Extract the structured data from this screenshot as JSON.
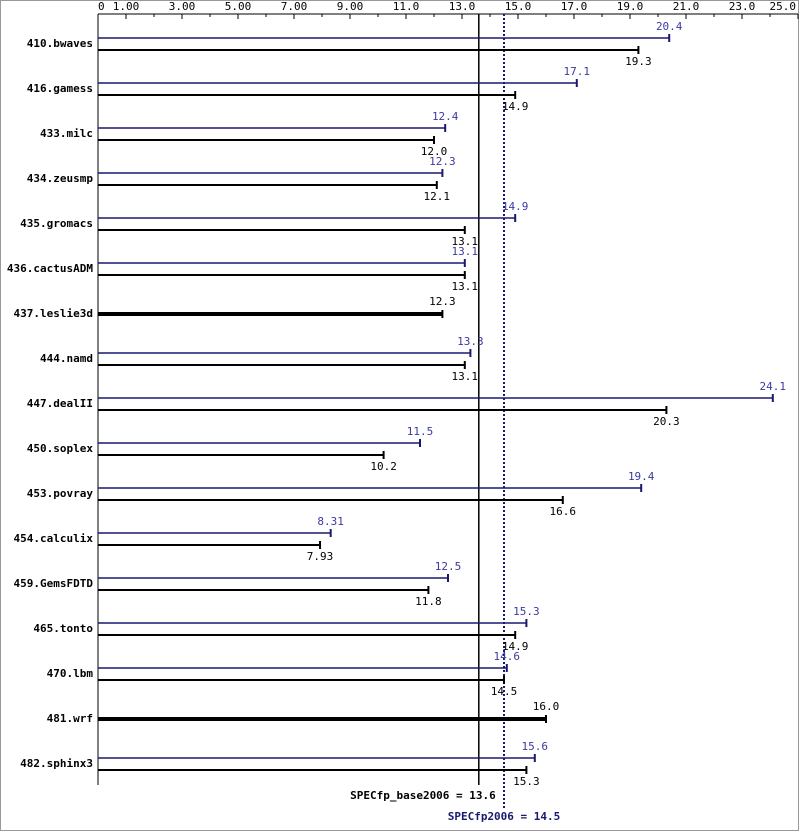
{
  "chart_data": {
    "type": "bar",
    "orientation": "horizontal",
    "categories": [
      "410.bwaves",
      "416.gamess",
      "433.milc",
      "434.zeusmp",
      "435.gromacs",
      "436.cactusADM",
      "437.leslie3d",
      "444.namd",
      "447.dealII",
      "450.soplex",
      "453.povray",
      "454.calculix",
      "459.GemsFDTD",
      "465.tonto",
      "470.lbm",
      "481.wrf",
      "482.sphinx3"
    ],
    "series": [
      {
        "color": "#191970",
        "values": [
          20.4,
          17.1,
          12.4,
          12.3,
          14.9,
          13.1,
          null,
          13.3,
          24.1,
          11.5,
          19.4,
          8.31,
          12.5,
          15.3,
          14.6,
          null,
          15.6
        ],
        "value_labels": [
          "20.4",
          "17.1",
          "12.4",
          "12.3",
          "14.9",
          "13.1",
          null,
          "13.3",
          "24.1",
          "11.5",
          "19.4",
          "8.31",
          "12.5",
          "15.3",
          "14.6",
          null,
          "15.6"
        ]
      },
      {
        "color": "#000000",
        "values": [
          19.3,
          14.9,
          12.0,
          12.1,
          13.1,
          13.1,
          12.3,
          13.1,
          20.3,
          10.2,
          16.6,
          7.93,
          11.8,
          14.9,
          14.5,
          16.0,
          15.3
        ],
        "value_labels": [
          "19.3",
          "14.9",
          "12.0",
          "12.1",
          "13.1",
          "13.1",
          "12.3",
          "13.1",
          "20.3",
          "10.2",
          "16.6",
          "7.93",
          "11.8",
          "14.9",
          "14.5",
          "16.0",
          "15.3"
        ]
      }
    ],
    "xlim": [
      0,
      25
    ],
    "xticks": [
      0,
      {
        "value": 1,
        "label": "1.00"
      },
      {
        "value": 3,
        "label": "3.00"
      },
      {
        "value": 5,
        "label": "5.00"
      },
      {
        "value": 7,
        "label": "7.00"
      },
      {
        "value": 9,
        "label": "9.00"
      },
      {
        "value": 11,
        "label": "11.0"
      },
      {
        "value": 13,
        "label": "13.0"
      },
      {
        "value": 15,
        "label": "15.0"
      },
      {
        "value": 17,
        "label": "17.0"
      },
      {
        "value": 19,
        "label": "19.0"
      },
      {
        "value": 21,
        "label": "21.0"
      },
      {
        "value": 23,
        "label": "23.0"
      },
      {
        "value": 25,
        "label": "25.0"
      }
    ],
    "reference_lines": [
      {
        "label": "SPECfp_base2006 = 13.6",
        "value": 13.6,
        "color": "#000000",
        "style": "solid"
      },
      {
        "label": "SPECfp2006 = 14.5",
        "value": 14.5,
        "color": "#191970",
        "style": "dotted"
      }
    ]
  }
}
